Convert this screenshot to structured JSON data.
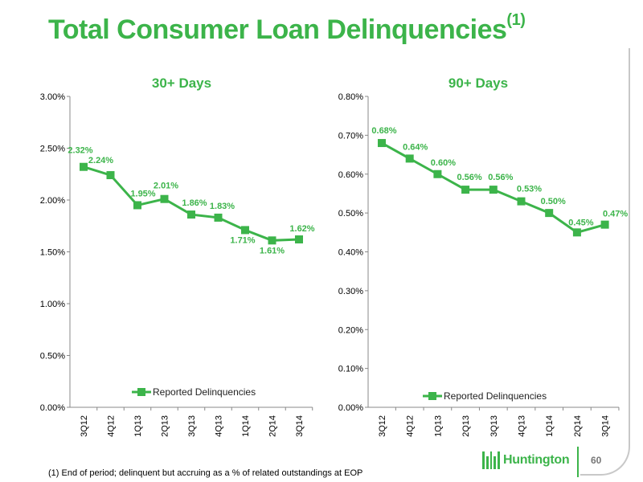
{
  "title": {
    "text": "Total Consumer Loan Delinquencies",
    "superscript": "(1)"
  },
  "colors": {
    "accent": "#3cb44a",
    "axis": "#888888",
    "text": "#000000"
  },
  "chart_data": [
    {
      "type": "line",
      "title": "30+ Days",
      "categories": [
        "3Q12",
        "4Q12",
        "1Q13",
        "2Q13",
        "3Q13",
        "4Q13",
        "1Q14",
        "2Q14",
        "3Q14"
      ],
      "series": [
        {
          "name": "Reported Delinquencies",
          "values": [
            2.32,
            2.24,
            1.95,
            2.01,
            1.86,
            1.83,
            1.71,
            1.61,
            1.62
          ]
        }
      ],
      "data_labels": [
        "2.32%",
        "2.24%",
        "1.95%",
        "2.01%",
        "1.86%",
        "1.83%",
        "1.71%",
        "1.61%",
        "1.62%"
      ],
      "yticks": [
        "0.00%",
        "0.50%",
        "1.00%",
        "1.50%",
        "2.00%",
        "2.50%",
        "3.00%"
      ],
      "ylim": [
        0,
        3.0
      ],
      "grid": false,
      "legend": "bottom"
    },
    {
      "type": "line",
      "title": "90+ Days",
      "categories": [
        "3Q12",
        "4Q12",
        "1Q13",
        "2Q13",
        "3Q13",
        "4Q13",
        "1Q14",
        "2Q14",
        "3Q14"
      ],
      "series": [
        {
          "name": "Reported Delinquencies",
          "values": [
            0.68,
            0.64,
            0.6,
            0.56,
            0.56,
            0.53,
            0.5,
            0.45,
            0.47
          ]
        }
      ],
      "data_labels": [
        "0.68%",
        "0.64%",
        "0.60%",
        "0.56%",
        "0.56%",
        "0.53%",
        "0.50%",
        "0.45%",
        "0.47%"
      ],
      "yticks": [
        "0.00%",
        "0.10%",
        "0.20%",
        "0.30%",
        "0.40%",
        "0.50%",
        "0.60%",
        "0.70%",
        "0.80%"
      ],
      "ylim": [
        0,
        0.8
      ],
      "grid": false,
      "legend": "bottom"
    }
  ],
  "footnote": "(1)   End of period; delinquent but accruing as a % of related outstandings at EOP",
  "logo": {
    "text": "Huntington",
    "icon": "huntington-logo-icon"
  },
  "page_number": "60"
}
